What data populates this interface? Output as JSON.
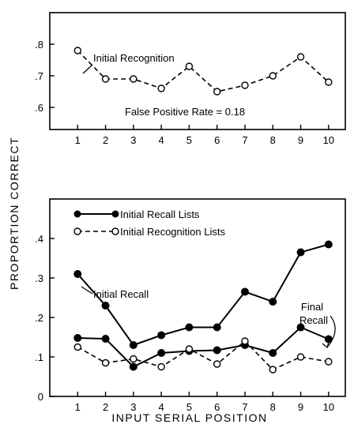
{
  "y_axis_label": "PROPORTION CORRECT",
  "x_axis_label": "INPUT SERIAL POSITION",
  "chart_data": [
    {
      "type": "line",
      "panel": "top",
      "x": [
        1,
        2,
        3,
        4,
        5,
        6,
        7,
        8,
        9,
        10
      ],
      "xlim": [
        0,
        10.6
      ],
      "ylim": [
        0.53,
        0.9
      ],
      "yticks": [
        ".6",
        ".7",
        ".8"
      ],
      "ytick_values": [
        0.6,
        0.7,
        0.8
      ],
      "series": [
        {
          "name": "Initial Recognition",
          "style": "dashed",
          "marker": "open-circle",
          "values": [
            0.78,
            0.69,
            0.69,
            0.66,
            0.73,
            0.65,
            0.67,
            0.7,
            0.76,
            0.68
          ]
        }
      ],
      "annotations": {
        "series_label": "Initial Recognition",
        "false_positive": "False Positive Rate = 0.18"
      },
      "grid": false
    },
    {
      "type": "line",
      "panel": "bottom",
      "x": [
        1,
        2,
        3,
        4,
        5,
        6,
        7,
        8,
        9,
        10
      ],
      "xlim": [
        0,
        10.6
      ],
      "ylim": [
        0,
        0.5
      ],
      "yticks": [
        "0",
        ".1",
        ".2",
        ".3",
        ".4"
      ],
      "ytick_values": [
        0,
        0.1,
        0.2,
        0.3,
        0.4
      ],
      "legend": [
        {
          "label": "Initial Recall Lists",
          "style": "solid",
          "marker": "filled-circle"
        },
        {
          "label": "Initial Recognition Lists",
          "style": "dashed",
          "marker": "open-circle"
        }
      ],
      "legend_position": "top-left",
      "series": [
        {
          "name": "Initial Recall",
          "list": "Initial Recall Lists",
          "style": "solid",
          "marker": "filled-circle",
          "values": [
            0.31,
            0.23,
            0.13,
            0.155,
            0.175,
            0.175,
            0.265,
            0.24,
            0.365,
            0.385
          ]
        },
        {
          "name": "Final Recall",
          "list": "Initial Recall Lists",
          "style": "solid",
          "marker": "filled-circle",
          "values": [
            0.148,
            0.146,
            0.075,
            0.11,
            0.115,
            0.117,
            0.13,
            0.11,
            0.175,
            0.145
          ]
        },
        {
          "name": "Final Recall",
          "list": "Initial Recognition Lists",
          "style": "dashed",
          "marker": "open-circle",
          "values": [
            0.125,
            0.085,
            0.095,
            0.075,
            0.12,
            0.082,
            0.14,
            0.068,
            0.1,
            0.088
          ]
        }
      ],
      "annotations": {
        "initial_recall": "Initial Recall",
        "final_recall_1": "Final",
        "final_recall_2": "Recall"
      },
      "grid": false
    }
  ]
}
